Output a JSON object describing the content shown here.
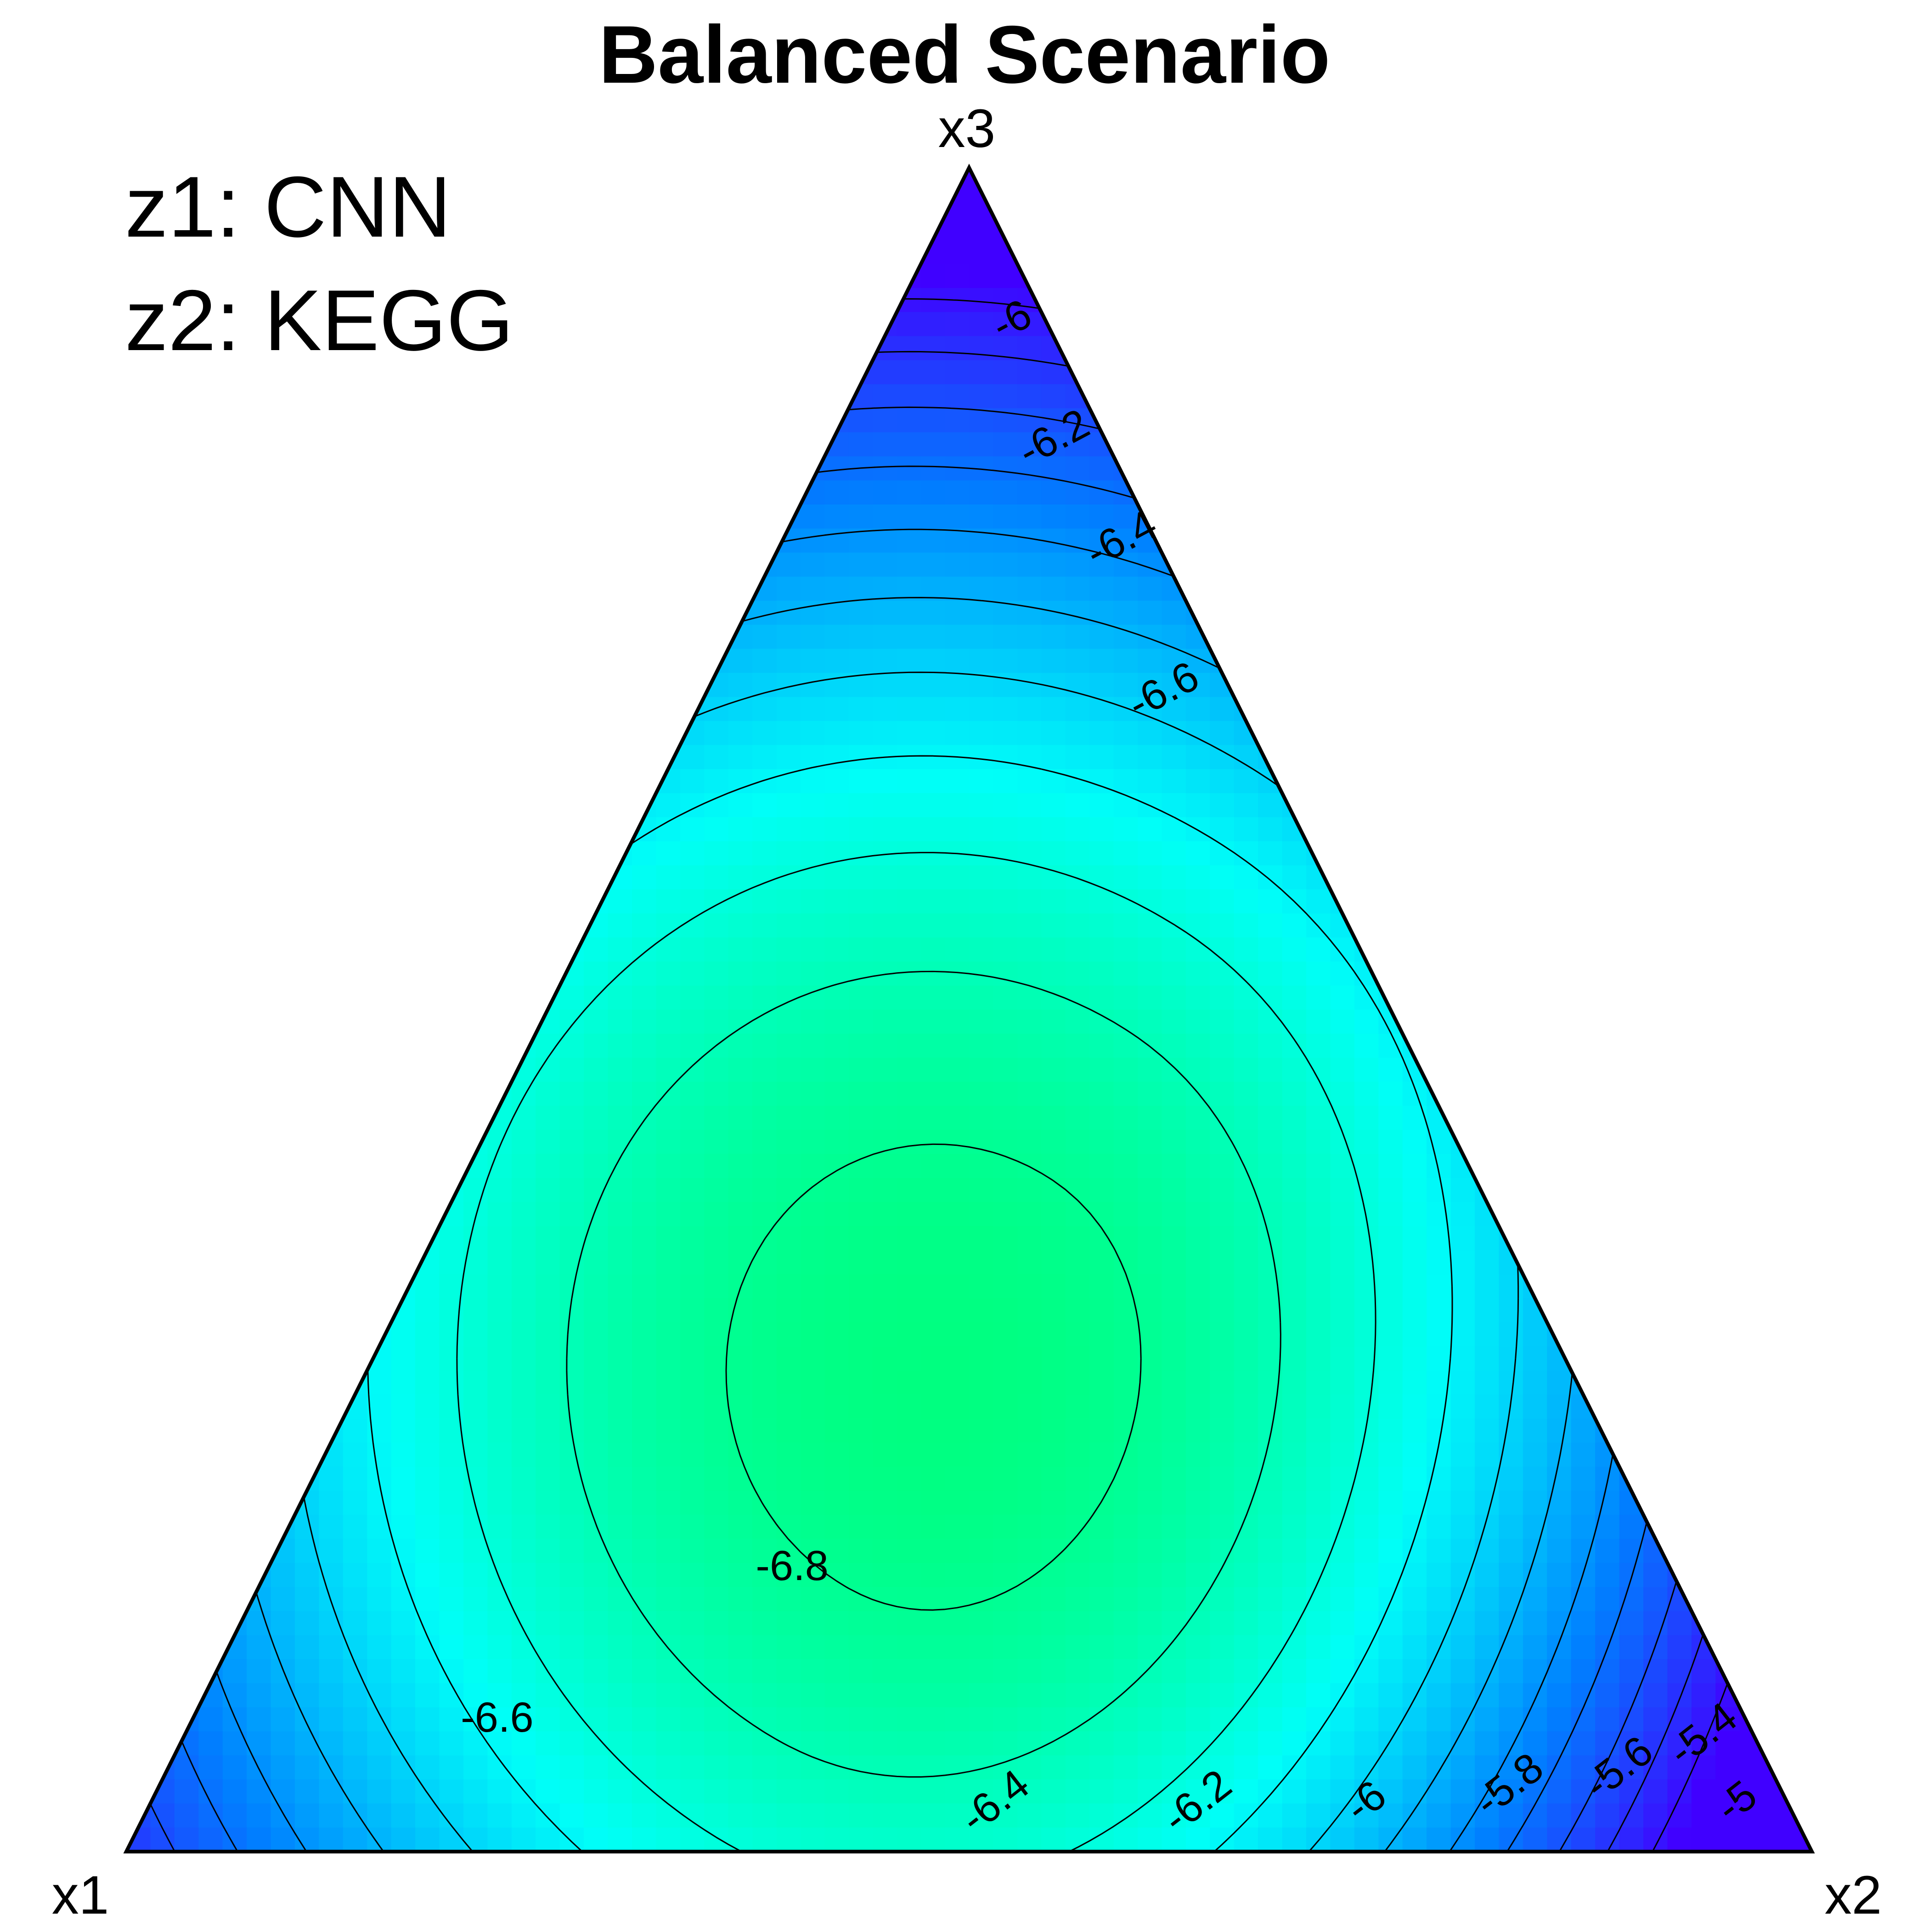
{
  "chart_data": {
    "type": "ternary-contour",
    "title": "Balanced Scenario",
    "vertices": {
      "left": "x1",
      "right": "x2",
      "top": "x3"
    },
    "legend": [
      "z1: CNN",
      "z2: KEGG"
    ],
    "colors": {
      "min": "#00ff80",
      "mid": "#00fff8",
      "high": "#0080ff",
      "max": "#4000ff",
      "line": "#000000"
    },
    "contour_levels": [
      -6.8,
      -6.6,
      -6.4,
      -6.2,
      -6,
      -5.8,
      -5.6,
      -5.4,
      -5.2,
      -5,
      -4.8
    ],
    "contour_labels": [
      {
        "text": "-6.8",
        "level": -6.8,
        "x1": 0.52,
        "x2": 0.31,
        "x3": 0.17
      },
      {
        "text": "-6.6",
        "level": -6.6,
        "x1": 0.74,
        "x2": 0.18,
        "x3": 0.08
      },
      {
        "text": "-6.4",
        "level": -6.4,
        "x1": 0.47,
        "x2": 0.5,
        "x3": 0.03
      },
      {
        "text": "-6.2",
        "level": -6.2,
        "x1": 0.35,
        "x2": 0.62,
        "x3": 0.03
      },
      {
        "text": "-6",
        "level": -6.0,
        "x1": 0.25,
        "x2": 0.72,
        "x3": 0.03
      },
      {
        "text": "-5.8",
        "level": -5.8,
        "x1": 0.16,
        "x2": 0.8,
        "x3": 0.04
      },
      {
        "text": "-5.6",
        "level": -5.6,
        "x1": 0.09,
        "x2": 0.86,
        "x3": 0.05
      },
      {
        "text": "-5.4",
        "level": -5.4,
        "x1": 0.03,
        "x2": 0.9,
        "x3": 0.07
      },
      {
        "text": "-5",
        "level": -5.0,
        "x1": 0.03,
        "x2": 0.94,
        "x3": 0.03
      },
      {
        "text": "-6.6",
        "level": -6.6,
        "x1": 0.04,
        "x2": 0.27,
        "x3": 0.69
      },
      {
        "text": "-6.4",
        "level": -6.4,
        "x1": 0.02,
        "x2": 0.2,
        "x3": 0.78
      },
      {
        "text": "-6.2",
        "level": -6.2,
        "x1": 0.03,
        "x2": 0.13,
        "x3": 0.84
      },
      {
        "text": "-6",
        "level": -6.0,
        "x1": 0.02,
        "x2": 0.07,
        "x3": 0.91
      }
    ]
  }
}
